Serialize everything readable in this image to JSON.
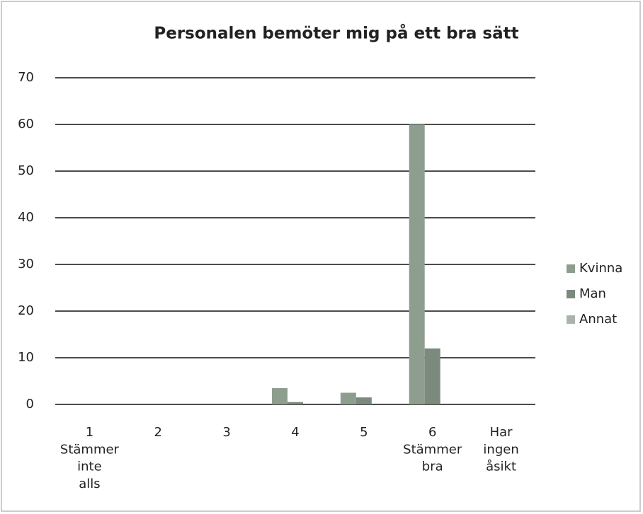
{
  "chart_data": {
    "type": "bar",
    "title": "Personalen bemöter mig på ett bra sätt",
    "categories": [
      "1\nStämmer\ninte\nalls",
      "2",
      "3",
      "4",
      "5",
      "6\nStämmer\nbra",
      "Har\ningen\nåsikt"
    ],
    "series": [
      {
        "name": "Kvinna",
        "color": "#8e9e8e",
        "values": [
          0,
          0,
          0,
          3.5,
          2.5,
          60,
          0
        ]
      },
      {
        "name": "Man",
        "color": "#7c8a7d",
        "values": [
          0,
          0,
          0,
          0.5,
          1.5,
          12,
          0
        ]
      },
      {
        "name": "Annat",
        "color": "#abb3ab",
        "values": [
          0,
          0,
          0,
          0,
          0,
          0,
          0
        ]
      }
    ],
    "ylim": [
      0,
      70
    ],
    "yticks": [
      0,
      10,
      20,
      30,
      40,
      50,
      60,
      70
    ],
    "grid": true,
    "legend": "right"
  }
}
